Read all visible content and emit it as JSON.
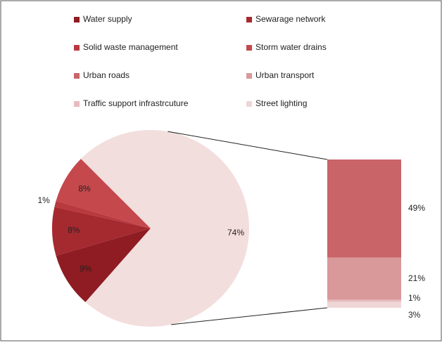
{
  "chart_data": {
    "type": "bar-of-pie",
    "categories": [
      "Water supply",
      "Sewarage network",
      "Solid waste management",
      "Storm water drains",
      "Urban roads",
      "Urban transport",
      "Traffic support infrastrcuture",
      "Street lighting"
    ],
    "values": [
      9,
      8,
      1,
      8,
      49,
      21,
      1,
      3
    ],
    "value_labels": [
      "9%",
      "8%",
      "1%",
      "8%",
      "49%",
      "21%",
      "1%",
      "3%"
    ],
    "colors": [
      "#8e1c22",
      "#a52a30",
      "#b8393e",
      "#c5484c",
      "#c96468",
      "#d9989a",
      "#e6bcbc",
      "#efd6d6"
    ],
    "pie_count": 4,
    "other_value": 74,
    "other_value_label": "74%",
    "other_color": "#f3dede",
    "legend": true
  }
}
